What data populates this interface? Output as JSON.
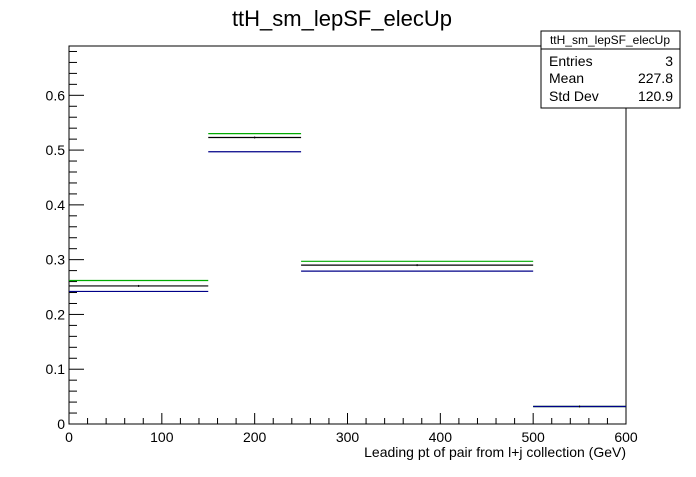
{
  "chart_data": {
    "type": "histogram",
    "title": "ttH_sm_lepSF_elecUp",
    "xlabel": "Leading pt of pair from l+j collection (GeV)",
    "ylabel": "",
    "xlim": [
      0,
      600
    ],
    "ylim": [
      0,
      0.69
    ],
    "x_ticks": [
      0,
      100,
      200,
      300,
      400,
      500,
      600
    ],
    "y_ticks": [
      0,
      0.1,
      0.2,
      0.3,
      0.4,
      0.5,
      0.6
    ],
    "bin_edges": [
      0,
      150,
      250,
      500,
      600
    ],
    "grid": false,
    "series": [
      {
        "color": "#000000",
        "values": [
          0.252,
          0.523,
          0.29,
          0.032
        ]
      },
      {
        "color": "#00aa00",
        "values": [
          0.262,
          0.53,
          0.297,
          0.032
        ]
      },
      {
        "color": "#000088",
        "values": [
          0.242,
          0.497,
          0.279,
          0.032
        ]
      }
    ],
    "stats_box": {
      "title": "ttH_sm_lepSF_elecUp",
      "rows": [
        {
          "label": "Entries",
          "value": "3"
        },
        {
          "label": "Mean",
          "value": "227.8"
        },
        {
          "label": "Std Dev",
          "value": "120.9"
        }
      ]
    }
  }
}
